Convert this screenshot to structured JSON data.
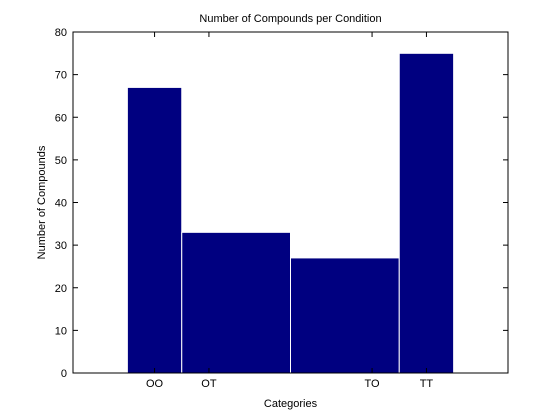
{
  "chart_data": {
    "type": "bar",
    "title": "Number of Compounds per Condition",
    "xlabel": "Categories",
    "ylabel": "Number of Compounds",
    "ylim": [
      0,
      80
    ],
    "yticks": [
      0,
      10,
      20,
      30,
      40,
      50,
      60,
      70,
      80
    ],
    "xlim": [
      0.5,
      8.5
    ],
    "xticks": [
      {
        "label": "OO",
        "x": 2
      },
      {
        "label": "OT",
        "x": 3
      },
      {
        "label": "TO",
        "x": 6
      },
      {
        "label": "TT",
        "x": 7
      }
    ],
    "bars": [
      {
        "x_start": 1.5,
        "x_end": 2.5,
        "value": 67
      },
      {
        "x_start": 2.5,
        "x_end": 4.5,
        "value": 33
      },
      {
        "x_start": 4.5,
        "x_end": 6.5,
        "value": 27
      },
      {
        "x_start": 6.5,
        "x_end": 7.5,
        "value": 75
      }
    ],
    "bar_color": "#000080",
    "grid": false
  }
}
